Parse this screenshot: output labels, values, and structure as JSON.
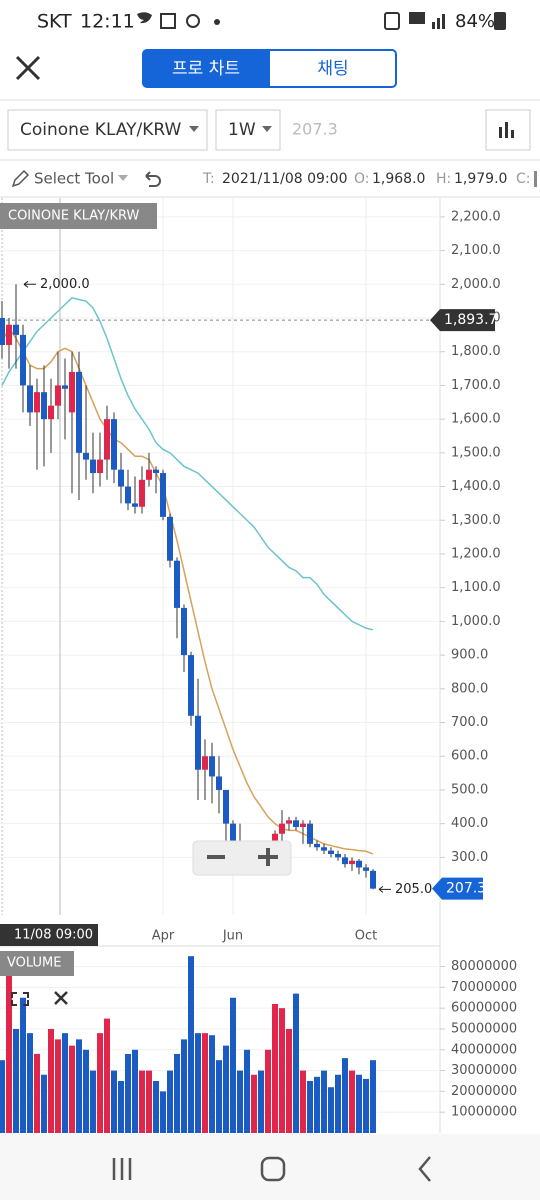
{
  "status_bar": {
    "carrier": "SKT",
    "time": "12:11",
    "battery": "84%"
  },
  "tabs": [
    "프로 차트",
    "채팅"
  ],
  "toolbar": {
    "symbol": "Coinone KLAY/KRW",
    "interval": "1W",
    "price": 207.3
  },
  "tools": {
    "select_tool": "Select Tool",
    "t_label": "T:",
    "t_value": "2021/11/08 09:00",
    "o_label": "O:",
    "o_value": "1,968.0",
    "h_label": "H:",
    "h_value": "1,979.0",
    "c_label": "C:"
  },
  "chart_data": [
    {
      "type": "candlestick",
      "title": "COINONE KLAY/KRW",
      "categories": [
        null,
        null,
        null,
        null,
        null,
        null,
        null,
        null,
        null,
        null,
        null,
        null,
        null,
        null,
        null,
        null,
        null,
        null,
        null,
        null,
        null,
        null,
        null,
        "Apr",
        null,
        null,
        null,
        null,
        null,
        null,
        null,
        null,
        null,
        "Jun",
        null,
        null,
        null,
        null,
        null,
        null,
        null,
        null,
        null,
        null,
        null,
        null,
        null,
        null,
        null,
        null,
        null,
        null,
        "Oct",
        null
      ],
      "open": [
        1900,
        1820,
        1880,
        1850,
        1700,
        1620,
        1680,
        1600,
        1640,
        1700,
        1620,
        1740,
        1500,
        1480,
        1440,
        1480,
        1600,
        1450,
        1400,
        1350,
        1340,
        1420,
        1450,
        1440,
        1310,
        1180,
        1040,
        900,
        720,
        560,
        600,
        540,
        500,
        400,
        330,
        310,
        300,
        310,
        300,
        310,
        370,
        400,
        410,
        390,
        400,
        340,
        330,
        320,
        310,
        300,
        280,
        290,
        270,
        260
      ],
      "high": [
        1950,
        1900,
        2000,
        1880,
        1760,
        1720,
        1760,
        1720,
        1800,
        1780,
        1800,
        1800,
        1700,
        1560,
        1560,
        1640,
        1620,
        1500,
        1450,
        1430,
        1460,
        1500,
        1460,
        1450,
        1320,
        1190,
        1050,
        910,
        830,
        650,
        640,
        600,
        500,
        410,
        400,
        350,
        330,
        320,
        330,
        380,
        440,
        420,
        420,
        410,
        410,
        350,
        340,
        330,
        320,
        310,
        300,
        295,
        280,
        265
      ],
      "low": [
        1780,
        1750,
        1750,
        1620,
        1580,
        1450,
        1460,
        1500,
        1600,
        1540,
        1380,
        1360,
        1420,
        1380,
        1400,
        1420,
        1410,
        1350,
        1330,
        1320,
        1320,
        1400,
        1380,
        1300,
        1160,
        950,
        850,
        690,
        470,
        470,
        460,
        430,
        350,
        290,
        280,
        280,
        270,
        280,
        280,
        300,
        340,
        380,
        380,
        340,
        330,
        320,
        310,
        300,
        290,
        270,
        260,
        250,
        240,
        205
      ],
      "close": [
        1820,
        1880,
        1850,
        1700,
        1620,
        1680,
        1600,
        1640,
        1700,
        1690,
        1740,
        1500,
        1480,
        1440,
        1480,
        1600,
        1450,
        1400,
        1350,
        1340,
        1420,
        1450,
        1440,
        1310,
        1180,
        1040,
        900,
        720,
        560,
        600,
        540,
        500,
        400,
        330,
        310,
        300,
        310,
        300,
        310,
        370,
        400,
        410,
        390,
        400,
        340,
        330,
        320,
        310,
        300,
        280,
        290,
        270,
        260,
        207.3
      ],
      "up_color": "#e0264a",
      "down_color": "#1a5bc4",
      "series": [
        {
          "color": "#d9a05b",
          "values": [
            1830,
            1870,
            1840,
            1800,
            1760,
            1750,
            1750,
            1770,
            1800,
            1810,
            1800,
            1750,
            1700,
            1650,
            1600,
            1570,
            1540,
            1530,
            1510,
            1490,
            1490,
            1480,
            1440,
            1400,
            1320,
            1240,
            1150,
            1060,
            970,
            880,
            800,
            740,
            680,
            620,
            570,
            520,
            480,
            450,
            420,
            400,
            385,
            380,
            380,
            370,
            360,
            350,
            340,
            335,
            330,
            325,
            323,
            320,
            318,
            310
          ]
        },
        {
          "color": "#6cc3cf",
          "values": [
            1700,
            1740,
            1770,
            1800,
            1830,
            1860,
            1880,
            1900,
            1920,
            1940,
            1960,
            1955,
            1950,
            1930,
            1890,
            1840,
            1780,
            1720,
            1670,
            1630,
            1600,
            1570,
            1530,
            1510,
            1500,
            1480,
            1460,
            1450,
            1440,
            1420,
            1400,
            1380,
            1360,
            1340,
            1320,
            1300,
            1280,
            1250,
            1220,
            1200,
            1180,
            1160,
            1150,
            1130,
            1130,
            1110,
            1080,
            1060,
            1040,
            1020,
            1000,
            990,
            980,
            975
          ]
        }
      ],
      "ylim": [
        129,
        2256
      ],
      "yticks": [
        {
          "value": 300,
          "label": "300.0"
        },
        {
          "value": 400,
          "label": "400.0"
        },
        {
          "value": 500,
          "label": "500.0"
        },
        {
          "value": 600,
          "label": "600.0"
        },
        {
          "value": 700,
          "label": "700.0"
        },
        {
          "value": 800,
          "label": "800.0"
        },
        {
          "value": 900,
          "label": "900.0"
        },
        {
          "value": 1000,
          "label": "1,000.0"
        },
        {
          "value": 1100,
          "label": "1,100.0"
        },
        {
          "value": 1200,
          "label": "1,200.0"
        },
        {
          "value": 1300,
          "label": "1,300.0"
        },
        {
          "value": 1400,
          "label": "1,400.0"
        },
        {
          "value": 1500,
          "label": "1,500.0"
        },
        {
          "value": 1600,
          "label": "1,600.0"
        },
        {
          "value": 1700,
          "label": "1,700.0"
        },
        {
          "value": 1800,
          "label": "1,800.0"
        },
        {
          "value": 1900,
          "label": "1,900.0"
        },
        {
          "value": 2000,
          "label": "2,000.0"
        },
        {
          "value": 2100,
          "label": "2,100.0"
        },
        {
          "value": 2200,
          "label": "2,200.0"
        }
      ],
      "high_label": {
        "value": 2000,
        "label": "2,000.0"
      },
      "low_label": {
        "value": 205,
        "label": "205.0"
      },
      "last_price": 207.3,
      "crosshair": {
        "value": 1893.7,
        "label": "1,893.7"
      },
      "crosshair_time": "11/08 09:00",
      "grid": true
    },
    {
      "type": "bar",
      "title": "VOLUME",
      "values": [
        35000000,
        80000000,
        50000000,
        65000000,
        48000000,
        38000000,
        28000000,
        50000000,
        45000000,
        48000000,
        42000000,
        45000000,
        40000000,
        30000000,
        48000000,
        55000000,
        30000000,
        25000000,
        38000000,
        40000000,
        30000000,
        30000000,
        25000000,
        20000000,
        30000000,
        38000000,
        45000000,
        85000000,
        48000000,
        48000000,
        47000000,
        35000000,
        42000000,
        65000000,
        30000000,
        40000000,
        28000000,
        30000000,
        40000000,
        62000000,
        60000000,
        50000000,
        67000000,
        30000000,
        25000000,
        27000000,
        30000000,
        22000000,
        28000000,
        36000000,
        30000000,
        28000000,
        26000000,
        35000000
      ],
      "ylim": [
        0,
        87000000
      ],
      "yticks": [
        10000000,
        20000000,
        30000000,
        40000000,
        50000000,
        60000000,
        70000000,
        80000000
      ]
    }
  ]
}
